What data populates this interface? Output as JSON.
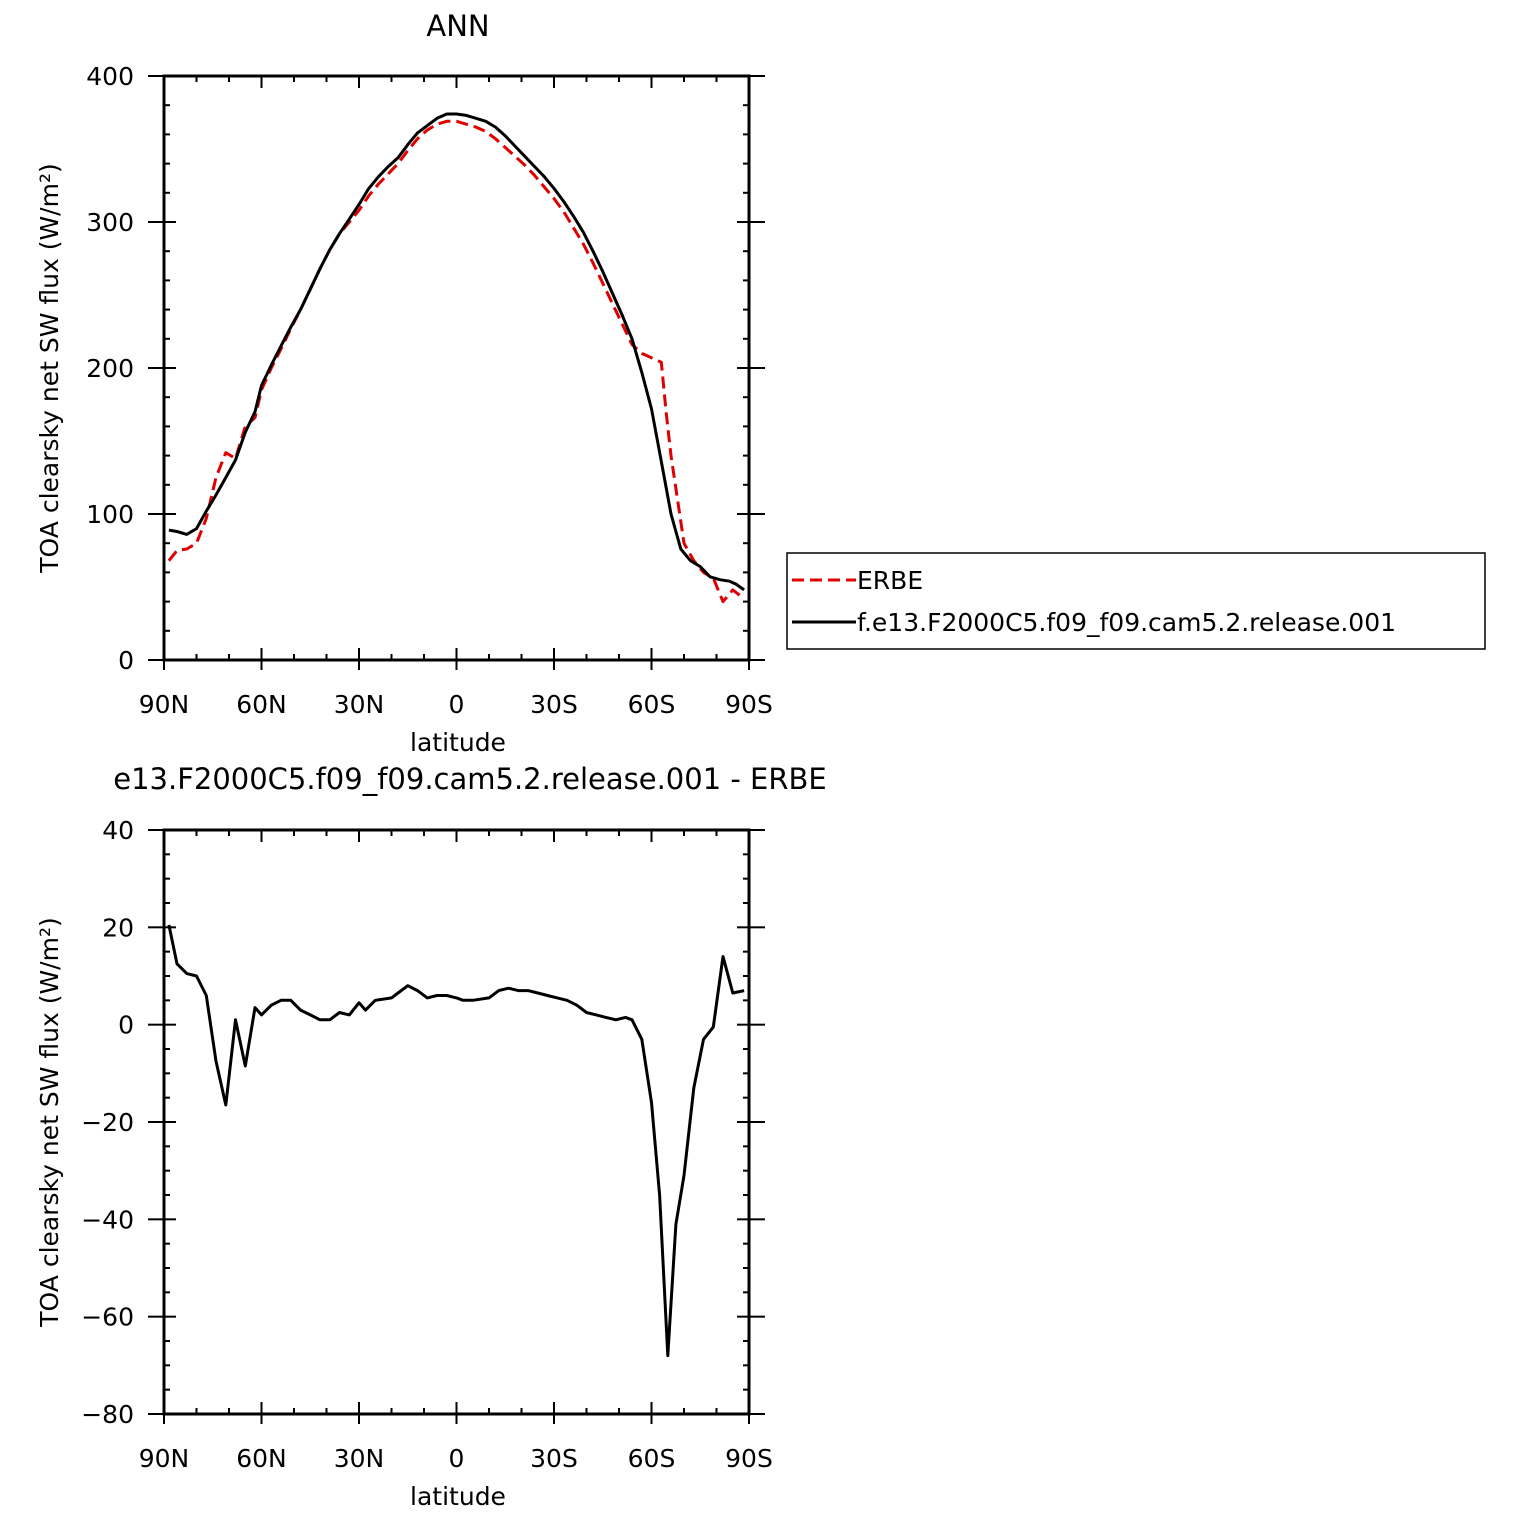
{
  "chart_data": [
    {
      "type": "line",
      "title": "ANN",
      "xlabel": "latitude",
      "ylabel": "TOA clearsky net SW flux (W/m²)",
      "xlim": [
        90,
        -90
      ],
      "ylim": [
        0,
        400
      ],
      "xticks": [
        {
          "value": 90,
          "label": "90N"
        },
        {
          "value": 60,
          "label": "60N"
        },
        {
          "value": 30,
          "label": "30N"
        },
        {
          "value": 0,
          "label": "0"
        },
        {
          "value": -30,
          "label": "30S"
        },
        {
          "value": -60,
          "label": "60S"
        },
        {
          "value": -90,
          "label": "90S"
        }
      ],
      "yticks": [
        {
          "value": 0,
          "label": "0"
        },
        {
          "value": 100,
          "label": "100"
        },
        {
          "value": 200,
          "label": "200"
        },
        {
          "value": 300,
          "label": "300"
        },
        {
          "value": 400,
          "label": "400"
        }
      ],
      "legend": {
        "position": "right"
      },
      "series": [
        {
          "name": "ERBE",
          "color": "#e00000",
          "style": "dashed",
          "points": [
            [
              88.5,
              68
            ],
            [
              86,
              75
            ],
            [
              83,
              76
            ],
            [
              80,
              80
            ],
            [
              77,
              97
            ],
            [
              74,
              125
            ],
            [
              71,
              142
            ],
            [
              68,
              138
            ],
            [
              65,
              160
            ],
            [
              62,
              166
            ],
            [
              60,
              185
            ],
            [
              57,
              200
            ],
            [
              54,
              213
            ],
            [
              51,
              227
            ],
            [
              48,
              240
            ],
            [
              45,
              254
            ],
            [
              42,
              268
            ],
            [
              39,
              281
            ],
            [
              36,
              292
            ],
            [
              33,
              300
            ],
            [
              30,
              308
            ],
            [
              27,
              318
            ],
            [
              24,
              326
            ],
            [
              21,
              333
            ],
            [
              18,
              340
            ],
            [
              15,
              349
            ],
            [
              12,
              357
            ],
            [
              9,
              363
            ],
            [
              6,
              367
            ],
            [
              3,
              369
            ],
            [
              0,
              369
            ],
            [
              -3,
              367
            ],
            [
              -6,
              365
            ],
            [
              -9,
              362
            ],
            [
              -12,
              357
            ],
            [
              -15,
              351
            ],
            [
              -18,
              345
            ],
            [
              -21,
              339
            ],
            [
              -24,
              332
            ],
            [
              -27,
              324
            ],
            [
              -30,
              316
            ],
            [
              -33,
              307
            ],
            [
              -36,
              296
            ],
            [
              -39,
              285
            ],
            [
              -42,
              272
            ],
            [
              -45,
              258
            ],
            [
              -48,
              244
            ],
            [
              -51,
              230
            ],
            [
              -54,
              216
            ],
            [
              -57,
              210
            ],
            [
              -60,
              207
            ],
            [
              -63,
              204
            ],
            [
              -64.5,
              170
            ],
            [
              -66,
              140
            ],
            [
              -68,
              110
            ],
            [
              -70,
              80
            ],
            [
              -73,
              68
            ],
            [
              -76,
              60
            ],
            [
              -79,
              56
            ],
            [
              -82,
              40
            ],
            [
              -85,
              48
            ],
            [
              -88.5,
              42
            ]
          ]
        },
        {
          "name": "f.e13.F2000C5.f09_f09.cam5.2.release.001",
          "color": "#000000",
          "style": "solid",
          "points": [
            [
              88.5,
              89
            ],
            [
              86,
              88
            ],
            [
              83,
              86
            ],
            [
              80,
              90
            ],
            [
              77,
              102
            ],
            [
              74,
              113
            ],
            [
              71,
              125
            ],
            [
              68,
              137
            ],
            [
              65,
              156
            ],
            [
              62,
              170
            ],
            [
              60,
              188
            ],
            [
              57,
              202
            ],
            [
              54,
              215
            ],
            [
              51,
              228
            ],
            [
              48,
              240
            ],
            [
              45,
              254
            ],
            [
              42,
              268
            ],
            [
              39,
              281
            ],
            [
              36,
              292
            ],
            [
              33,
              302
            ],
            [
              30,
              312
            ],
            [
              27,
              323
            ],
            [
              24,
              331
            ],
            [
              21,
              338
            ],
            [
              18,
              344
            ],
            [
              15,
              353
            ],
            [
              12,
              361
            ],
            [
              9,
              366
            ],
            [
              6,
              371
            ],
            [
              3,
              374
            ],
            [
              0,
              374
            ],
            [
              -3,
              373
            ],
            [
              -6,
              371
            ],
            [
              -9,
              369
            ],
            [
              -12,
              365
            ],
            [
              -15,
              359
            ],
            [
              -18,
              352
            ],
            [
              -21,
              345
            ],
            [
              -24,
              338
            ],
            [
              -27,
              331
            ],
            [
              -30,
              323
            ],
            [
              -33,
              314
            ],
            [
              -36,
              304
            ],
            [
              -39,
              293
            ],
            [
              -42,
              280
            ],
            [
              -45,
              266
            ],
            [
              -48,
              251
            ],
            [
              -51,
              236
            ],
            [
              -54,
              220
            ],
            [
              -57,
              197
            ],
            [
              -60,
              172
            ],
            [
              -63,
              136
            ],
            [
              -66,
              100
            ],
            [
              -69,
              76
            ],
            [
              -72,
              68
            ],
            [
              -75,
              64
            ],
            [
              -78,
              57
            ],
            [
              -81,
              55
            ],
            [
              -84,
              54
            ],
            [
              -86,
              52
            ],
            [
              -88.5,
              48
            ]
          ]
        }
      ]
    },
    {
      "type": "line",
      "title": "e13.F2000C5.f09_f09.cam5.2.release.001 - ERBE",
      "xlabel": "latitude",
      "ylabel": "TOA clearsky net SW flux (W/m²)",
      "xlim": [
        90,
        -90
      ],
      "ylim": [
        -80,
        40
      ],
      "xticks": [
        {
          "value": 90,
          "label": "90N"
        },
        {
          "value": 60,
          "label": "60N"
        },
        {
          "value": 30,
          "label": "30N"
        },
        {
          "value": 0,
          "label": "0"
        },
        {
          "value": -30,
          "label": "30S"
        },
        {
          "value": -60,
          "label": "60S"
        },
        {
          "value": -90,
          "label": "90S"
        }
      ],
      "yticks": [
        {
          "value": -80,
          "label": "−80"
        },
        {
          "value": -60,
          "label": "−60"
        },
        {
          "value": -40,
          "label": "−40"
        },
        {
          "value": -20,
          "label": "−20"
        },
        {
          "value": 0,
          "label": "0"
        },
        {
          "value": 20,
          "label": "20"
        },
        {
          "value": 40,
          "label": "40"
        }
      ],
      "series": [
        {
          "color": "#000000",
          "style": "solid",
          "points": [
            [
              88.5,
              20.5
            ],
            [
              86,
              12.5
            ],
            [
              83,
              10.5
            ],
            [
              80,
              10
            ],
            [
              77,
              6
            ],
            [
              74,
              -7.5
            ],
            [
              71,
              -16.5
            ],
            [
              68,
              1
            ],
            [
              65,
              -8.5
            ],
            [
              62,
              3.5
            ],
            [
              60,
              2
            ],
            [
              57,
              4
            ],
            [
              54,
              5
            ],
            [
              51,
              5
            ],
            [
              48,
              3
            ],
            [
              45,
              2
            ],
            [
              42,
              1
            ],
            [
              39,
              1
            ],
            [
              36,
              2.5
            ],
            [
              33,
              2
            ],
            [
              30,
              4.5
            ],
            [
              28,
              3
            ],
            [
              25,
              5
            ],
            [
              20,
              5.5
            ],
            [
              18,
              6.5
            ],
            [
              15,
              8
            ],
            [
              12,
              7
            ],
            [
              9,
              5.5
            ],
            [
              6,
              6
            ],
            [
              3,
              6
            ],
            [
              0,
              5.5
            ],
            [
              -2,
              5
            ],
            [
              -5,
              5
            ],
            [
              -10,
              5.5
            ],
            [
              -13,
              7
            ],
            [
              -16,
              7.5
            ],
            [
              -19,
              7
            ],
            [
              -22,
              7
            ],
            [
              -25,
              6.5
            ],
            [
              -28,
              6
            ],
            [
              -31,
              5.5
            ],
            [
              -34,
              5
            ],
            [
              -37,
              4
            ],
            [
              -40,
              2.5
            ],
            [
              -43,
              2
            ],
            [
              -46,
              1.5
            ],
            [
              -49,
              1
            ],
            [
              -52,
              1.5
            ],
            [
              -54,
              1
            ],
            [
              -57,
              -3
            ],
            [
              -60,
              -16
            ],
            [
              -62.5,
              -35
            ],
            [
              -65,
              -68
            ],
            [
              -67.5,
              -41
            ],
            [
              -70,
              -31
            ],
            [
              -73,
              -13
            ],
            [
              -76,
              -3
            ],
            [
              -79,
              -0.5
            ],
            [
              -82,
              14
            ],
            [
              -85,
              6.5
            ],
            [
              -88.5,
              7
            ]
          ]
        }
      ]
    }
  ]
}
